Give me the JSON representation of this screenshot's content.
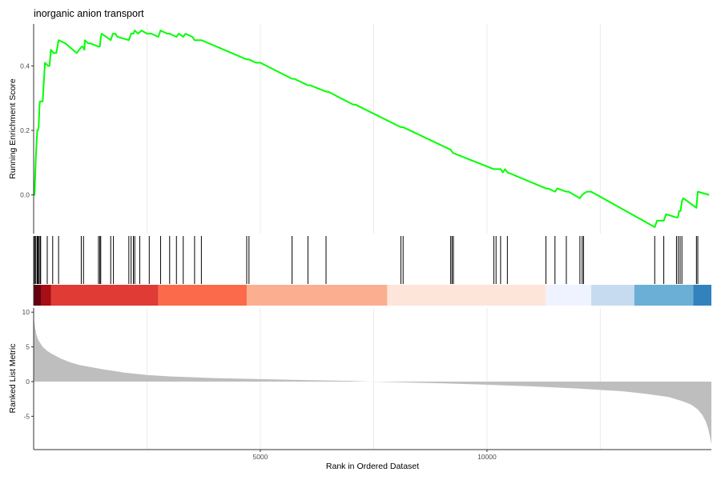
{
  "chart_data": {
    "type": "line",
    "title": "inorganic anion transport",
    "xlabel": "Rank in Ordered Dataset",
    "x_ticks": [
      5000,
      10000
    ],
    "xlim": [
      0,
      14950
    ],
    "grid": "vertical",
    "colors": {
      "es_line": "#00ff00",
      "hit_line": "#000000",
      "metric_fill": "#bebebe",
      "axis": "#333333",
      "grid": "#ebebeb"
    },
    "panels": [
      {
        "name": "running-es",
        "ylabel": "Running Enrichment Score",
        "y_ticks": [
          0.0,
          0.2,
          0.4
        ],
        "y_tick_labels": [
          "0.0",
          "0.2",
          "0.4"
        ],
        "ylim": [
          -0.12,
          0.53
        ],
        "series": [
          {
            "x": [
              0,
              20,
              50,
              80,
              95,
              110,
              130,
              140,
              155,
              160,
              200,
              250,
              320,
              350,
              380,
              440,
              500,
              550,
              700,
              950,
              1060,
              1080,
              1120,
              1130,
              1200,
              1250,
              1430,
              1460,
              1480,
              1500,
              1600,
              1700,
              1750,
              1760,
              1800,
              1850,
              2100,
              2150,
              2200,
              2230,
              2300,
              2380,
              2500,
              2600,
              2750,
              2800,
              2950,
              3000,
              3150,
              3200,
              3300,
              3350,
              3500,
              3550,
              3650,
              3700,
              4700,
              4750,
              4900,
              5000,
              5700,
              5750,
              6050,
              6100,
              6450,
              6500,
              7050,
              7100,
              8100,
              8150,
              9200,
              9250,
              10150,
              10200,
              10300,
              10350,
              10400,
              10450,
              11300,
              11350,
              11500,
              11550,
              11750,
              11800,
              12050,
              12100,
              12200,
              12300,
              13700,
              13750,
              13900,
              13950,
              14180,
              14210,
              14240,
              14270,
              14300,
              14330,
              14620,
              14650,
              14900
            ],
            "y": [
              0.0,
              0.0,
              0.12,
              0.2,
              0.2,
              0.21,
              0.28,
              0.29,
              0.29,
              0.29,
              0.29,
              0.41,
              0.4,
              0.4,
              0.45,
              0.44,
              0.44,
              0.48,
              0.47,
              0.44,
              0.46,
              0.46,
              0.45,
              0.48,
              0.47,
              0.47,
              0.46,
              0.46,
              0.49,
              0.5,
              0.49,
              0.48,
              0.5,
              0.5,
              0.5,
              0.49,
              0.48,
              0.5,
              0.5,
              0.51,
              0.5,
              0.51,
              0.5,
              0.5,
              0.49,
              0.51,
              0.5,
              0.5,
              0.49,
              0.5,
              0.49,
              0.5,
              0.49,
              0.48,
              0.48,
              0.48,
              0.42,
              0.42,
              0.41,
              0.41,
              0.36,
              0.36,
              0.34,
              0.34,
              0.32,
              0.32,
              0.28,
              0.28,
              0.21,
              0.21,
              0.14,
              0.13,
              0.08,
              0.08,
              0.08,
              0.07,
              0.08,
              0.07,
              0.02,
              0.02,
              0.01,
              0.02,
              0.01,
              0.01,
              -0.01,
              0.0,
              0.01,
              0.01,
              -0.1,
              -0.08,
              -0.08,
              -0.06,
              -0.07,
              -0.07,
              -0.05,
              -0.05,
              -0.02,
              -0.01,
              -0.04,
              0.01,
              0.0
            ]
          }
        ]
      },
      {
        "name": "hit-ticks",
        "hits": [
          8,
          30,
          50,
          80,
          95,
          110,
          140,
          155,
          300,
          420,
          550,
          1050,
          1100,
          1430,
          1460,
          1480,
          1700,
          1760,
          2100,
          2150,
          2200,
          2230,
          2340,
          2550,
          2800,
          3000,
          3150,
          3300,
          3550,
          3700,
          4700,
          4750,
          5700,
          6050,
          6450,
          8100,
          8150,
          9200,
          9230,
          9260,
          10150,
          10200,
          10300,
          10450,
          11300,
          11500,
          11750,
          12050,
          12100,
          12130,
          13700,
          13900,
          14180,
          14220,
          14260,
          14300,
          14620,
          14650
        ]
      },
      {
        "name": "color-bar",
        "segments": [
          {
            "from": 0,
            "to": 170,
            "color": "#67000d"
          },
          {
            "from": 170,
            "to": 380,
            "color": "#a50f15"
          },
          {
            "from": 380,
            "to": 2750,
            "color": "#e03b35"
          },
          {
            "from": 2750,
            "to": 4700,
            "color": "#fb6a4a"
          },
          {
            "from": 4700,
            "to": 7800,
            "color": "#fcae91"
          },
          {
            "from": 7800,
            "to": 11300,
            "color": "#fee5d9"
          },
          {
            "from": 11300,
            "to": 12300,
            "color": "#eff3ff"
          },
          {
            "from": 12300,
            "to": 13250,
            "color": "#c6dbef"
          },
          {
            "from": 13250,
            "to": 14550,
            "color": "#6baed6"
          },
          {
            "from": 14550,
            "to": 14950,
            "color": "#3182bd"
          }
        ]
      },
      {
        "name": "ranked-metric",
        "ylabel": "Ranked List Metric",
        "y_ticks": [
          -5,
          0,
          5,
          10
        ],
        "y_tick_labels": [
          "-5",
          "0",
          "5",
          "10"
        ],
        "ylim": [
          -9.8,
          10.6
        ],
        "area": {
          "x": [
            0,
            10,
            30,
            60,
            100,
            150,
            200,
            300,
            400,
            600,
            800,
            1000,
            1500,
            2000,
            2500,
            3000,
            4000,
            5000,
            6000,
            7000,
            7400,
            8000,
            9000,
            10000,
            11000,
            12000,
            13000,
            13500,
            14000,
            14300,
            14500,
            14650,
            14750,
            14830,
            14880,
            14920,
            14950
          ],
          "y": [
            10.0,
            8.8,
            7.8,
            6.8,
            6.0,
            5.5,
            5.0,
            4.4,
            4.0,
            3.3,
            2.8,
            2.4,
            1.8,
            1.3,
            0.95,
            0.75,
            0.5,
            0.35,
            0.22,
            0.1,
            0.0,
            -0.1,
            -0.25,
            -0.45,
            -0.7,
            -1.0,
            -1.4,
            -1.75,
            -2.2,
            -2.8,
            -3.3,
            -4.0,
            -4.8,
            -5.8,
            -6.8,
            -8.0,
            -9.0
          ]
        }
      }
    ]
  }
}
